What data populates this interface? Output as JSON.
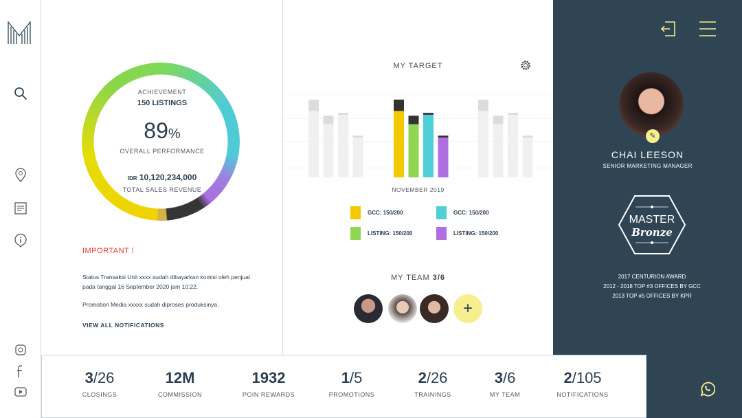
{
  "sidebar": {
    "logo": "M",
    "icons": [
      "search-icon",
      "location-pin-icon",
      "document-icon",
      "info-icon",
      "instagram-icon",
      "facebook-icon",
      "youtube-icon"
    ]
  },
  "achievement": {
    "label": "ACHIEVEMENT",
    "listings": "150 LISTINGS",
    "percent": "89",
    "percent_sign": "%",
    "performance_label": "OVERALL PERFORMANCE",
    "currency": "IDR",
    "revenue": "10,120,234,000",
    "revenue_label": "TOTAL SALES REVENUE",
    "progress": 0.89
  },
  "notifications": {
    "title": "IMPORTANT !",
    "items": [
      "Status Transaksi Unit xxxx sudah dibayarkan komisi oleh penjual pada tanggal 16 September 2020 jam 10:22.",
      "Promotion Media xxxxx sudah diproses produksinya."
    ],
    "view_all": "VIEW ALL NOTIFICATIONS"
  },
  "target": {
    "title": "MY TARGET",
    "month": "NOVEMBER 2019",
    "legend": [
      {
        "label": "GCC: 150/200",
        "color": "#f5c800"
      },
      {
        "label": "GCC: 150/200",
        "color": "#4fcfd8"
      },
      {
        "label": "LISTING: 150/200",
        "color": "#8fd651"
      },
      {
        "label": "LISTING: 150/200",
        "color": "#b06fe0"
      }
    ]
  },
  "chart_data": {
    "type": "bar",
    "stacked": true,
    "groups": [
      {
        "label": "",
        "faded": true,
        "bars": [
          [
            70,
            12
          ],
          [
            56,
            9
          ],
          [
            66,
            2
          ],
          [
            42,
            2
          ]
        ]
      },
      {
        "label": "NOVEMBER 2019",
        "faded": false,
        "bars": [
          [
            70,
            12
          ],
          [
            56,
            9
          ],
          [
            66,
            2
          ],
          [
            42,
            2
          ]
        ]
      },
      {
        "label": "",
        "faded": true,
        "bars": [
          [
            70,
            12
          ],
          [
            56,
            9
          ],
          [
            66,
            2
          ],
          [
            42,
            2
          ]
        ]
      }
    ],
    "colors": [
      "#f5c800",
      "#8fd651",
      "#4fcfd8",
      "#b06fe0"
    ],
    "remaining_color": "#333333",
    "ylim": [
      0,
      100
    ],
    "grid": true
  },
  "team": {
    "label": "MY TEAM",
    "count": "3/6",
    "add": "+"
  },
  "profile": {
    "name": "CHAI LEESON",
    "role": "SENIOR MARKETING MANAGER",
    "badge_line1": "MASTER",
    "badge_line2": "Bronze",
    "awards": [
      "2017 CENTURION AWARD",
      "2012 - 2018 TOP #3 OFFICES BY GCC",
      "2013 TOP #5 OFFICES BY KPR"
    ]
  },
  "stats": [
    {
      "a": "3",
      "b": "26",
      "label": "CLOSINGS"
    },
    {
      "a": "12M",
      "b": "",
      "label": "COMMISSION"
    },
    {
      "a": "1932",
      "b": "",
      "label": "POIN REWARDS"
    },
    {
      "a": "1",
      "b": "5",
      "label": "PROMOTIONS"
    },
    {
      "a": "2",
      "b": "26",
      "label": "TRAININGS"
    },
    {
      "a": "3",
      "b": "6",
      "label": "MY TEAM"
    },
    {
      "a": "2",
      "b": "105",
      "label": "NOTIFICATIONS"
    }
  ],
  "colors": {
    "dark_panel": "#2f4553",
    "accent_yellow": "#f7ee8f",
    "important": "#e53935"
  }
}
